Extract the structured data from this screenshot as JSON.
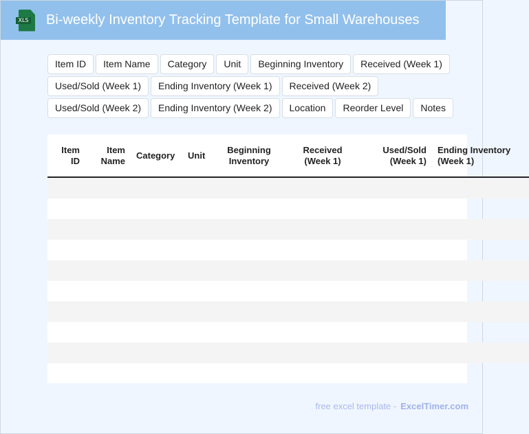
{
  "header": {
    "title": "Bi-weekly Inventory Tracking Template for Small Warehouses",
    "icon": "xls-file-icon",
    "icon_label": "XLS"
  },
  "field_chips": [
    [
      "Item ID",
      "Item Name",
      "Category",
      "Unit",
      "Beginning Inventory",
      "Received (Week 1)"
    ],
    [
      "Used/Sold (Week 1)",
      "Ending Inventory (Week 1)",
      "Received (Week 2)"
    ],
    [
      "Used/Sold (Week 2)",
      "Ending Inventory (Week 2)",
      "Location",
      "Reorder Level",
      "Notes"
    ]
  ],
  "table": {
    "columns": [
      "Item ID",
      "Item Name",
      "Category",
      "Unit",
      "Beginning Inventory",
      "Received (Week 1)",
      "Used/Sold (Week 1)",
      "Ending Inventory (Week 1)"
    ],
    "row_count": 10
  },
  "footer": {
    "text": "free excel template -",
    "brand": "ExcelTimer.com"
  }
}
